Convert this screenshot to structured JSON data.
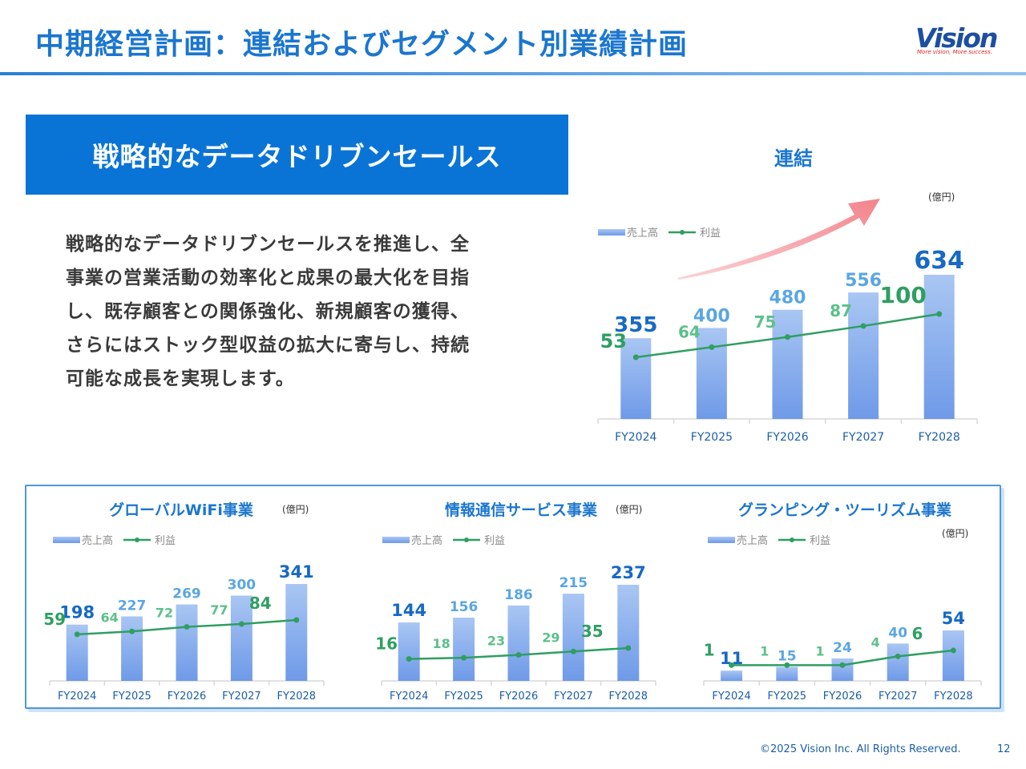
{
  "header": {
    "title": "中期経営計画：連結およびセグメント別業績計画",
    "logo_text": "Vision",
    "logo_tagline": "More vision, More success."
  },
  "banner": {
    "text": "戦略的なデータドリブンセールス"
  },
  "body": {
    "lines": [
      "戦略的なデータドリブンセールスを推進し、全",
      "事業の営業活動の効率化と成果の最大化を目指",
      "し、既存顧客との関係強化、新規顧客の獲得、",
      "さらにはストック型収益の拡大に寄与し、持続",
      "可能な成長を実現します。"
    ]
  },
  "consolidated": {
    "heading": "連結"
  },
  "footer": {
    "copyright": "©2025 Vision Inc. All Rights Reserved.",
    "page": "12"
  },
  "colors": {
    "accent": "#1b76cf",
    "bar": "#7fa9ee",
    "profit": "#2f9e62",
    "arrow": "#f4949b"
  },
  "chart_data": [
    {
      "id": "consolidated",
      "type": "bar",
      "title": "連結",
      "unit": "(億円)",
      "categories": [
        "FY2024",
        "FY2025",
        "FY2026",
        "FY2027",
        "FY2028"
      ],
      "series": [
        {
          "name": "売上高",
          "type": "bar",
          "values": [
            355,
            400,
            480,
            556,
            634
          ]
        },
        {
          "name": "利益",
          "type": "line",
          "values": [
            53,
            64,
            75,
            87,
            100
          ]
        }
      ],
      "legend": "top-left",
      "grid": false
    },
    {
      "id": "wifi",
      "type": "bar",
      "title": "グローバルWiFi事業",
      "unit": "(億円)",
      "categories": [
        "FY2024",
        "FY2025",
        "FY2026",
        "FY2027",
        "FY2028"
      ],
      "series": [
        {
          "name": "売上高",
          "type": "bar",
          "values": [
            198,
            227,
            269,
            300,
            341
          ]
        },
        {
          "name": "利益",
          "type": "line",
          "values": [
            59,
            64,
            72,
            77,
            84
          ]
        }
      ],
      "legend": "top-left",
      "grid": false
    },
    {
      "id": "info",
      "type": "bar",
      "title": "情報通信サービス事業",
      "unit": "(億円)",
      "categories": [
        "FY2024",
        "FY2025",
        "FY2026",
        "FY2027",
        "FY2028"
      ],
      "series": [
        {
          "name": "売上高",
          "type": "bar",
          "values": [
            144,
            156,
            186,
            215,
            237
          ]
        },
        {
          "name": "利益",
          "type": "line",
          "values": [
            16,
            18,
            23,
            29,
            35
          ]
        }
      ],
      "legend": "top-left",
      "grid": false
    },
    {
      "id": "glamping",
      "type": "bar",
      "title": "グランピング・ツーリズム事業",
      "unit": "(億円)",
      "categories": [
        "FY2024",
        "FY2025",
        "FY2026",
        "FY2027",
        "FY2028"
      ],
      "series": [
        {
          "name": "売上高",
          "type": "bar",
          "values": [
            11,
            15,
            24,
            40,
            54
          ]
        },
        {
          "name": "利益",
          "type": "line",
          "values": [
            1,
            1,
            1,
            4,
            6
          ]
        }
      ],
      "legend": "top-left",
      "grid": false
    }
  ]
}
